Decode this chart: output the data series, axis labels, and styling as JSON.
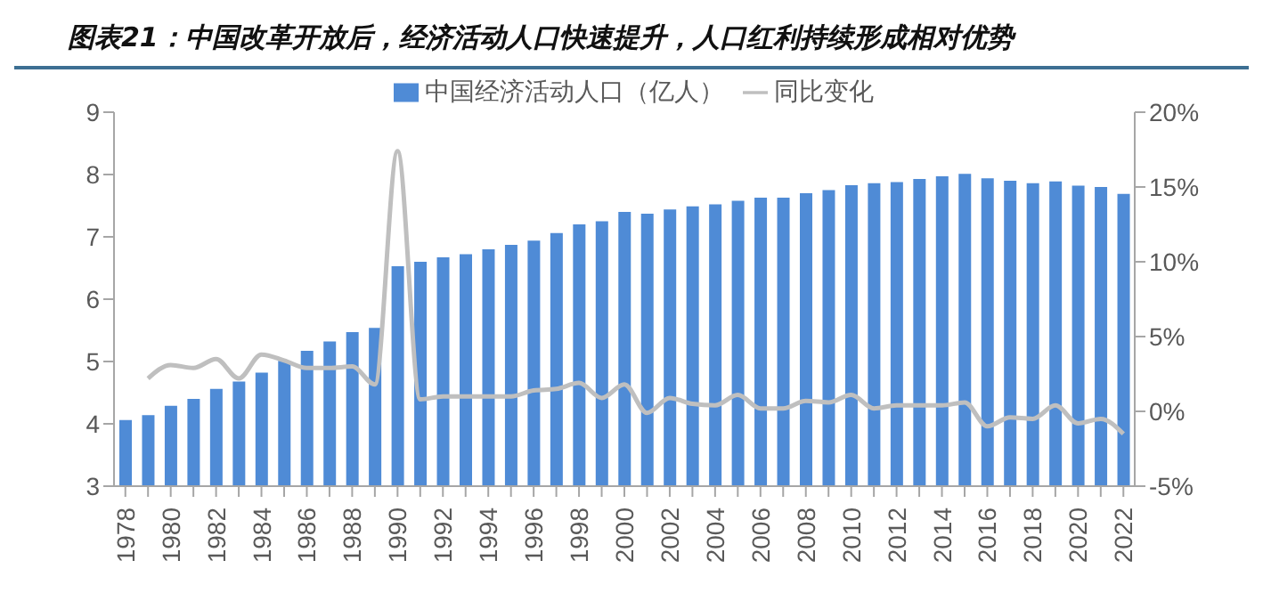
{
  "chart_data": {
    "type": "bar",
    "title": "图表21：中国改革开放后，经济活动人口快速提升，人口红利持续形成相对优势",
    "categories": [
      "1978",
      null,
      "1980",
      null,
      "1982",
      null,
      "1984",
      null,
      "1986",
      null,
      "1988",
      null,
      "1990",
      null,
      "1992",
      null,
      "1994",
      null,
      "1996",
      null,
      "1998",
      null,
      "2000",
      null,
      "2002",
      null,
      "2004",
      null,
      "2006",
      null,
      "2008",
      null,
      "2010",
      null,
      "2012",
      null,
      "2014",
      null,
      "2016",
      null,
      "2018",
      null,
      "2020",
      null,
      "2022"
    ],
    "series": [
      {
        "name": "中国经济活动人口（亿人）",
        "color": "#4f8bd6",
        "values": [
          4.06,
          4.14,
          4.29,
          4.4,
          4.56,
          4.68,
          4.82,
          5.01,
          5.17,
          5.32,
          5.47,
          5.54,
          6.53,
          6.6,
          6.67,
          6.72,
          6.8,
          6.87,
          6.94,
          7.06,
          7.2,
          7.25,
          7.4,
          7.37,
          7.44,
          7.49,
          7.52,
          7.58,
          7.63,
          7.63,
          7.7,
          7.75,
          7.83,
          7.86,
          7.88,
          7.93,
          7.97,
          8.01,
          7.94,
          7.9,
          7.86,
          7.89,
          7.82,
          7.8,
          7.69
        ]
      },
      {
        "name": "同比变化",
        "type": "line",
        "axis": "y2",
        "color": "#bfbfbf",
        "values": [
          null,
          2.2,
          3.1,
          2.9,
          3.5,
          2.2,
          3.8,
          3.4,
          2.9,
          2.9,
          3.0,
          1.8,
          17.4,
          0.8,
          1.0,
          1.0,
          1.0,
          1.0,
          1.4,
          1.5,
          1.9,
          0.9,
          1.8,
          -0.1,
          0.9,
          0.5,
          0.4,
          1.1,
          0.2,
          0.2,
          0.7,
          0.6,
          1.1,
          0.2,
          0.4,
          0.4,
          0.4,
          0.6,
          -1.0,
          -0.4,
          -0.5,
          0.4,
          -0.8,
          -0.5,
          -1.5
        ]
      }
    ],
    "ylim": [
      3,
      9
    ],
    "yticks": [
      3,
      4,
      5,
      6,
      7,
      8,
      9
    ],
    "y2lim": [
      -5,
      20
    ],
    "y2ticks": [
      {
        "value": -5,
        "label": "-5%"
      },
      {
        "value": 0,
        "label": "0%"
      },
      {
        "value": 5,
        "label": "5%"
      },
      {
        "value": 10,
        "label": "10%"
      },
      {
        "value": 15,
        "label": "15%"
      },
      {
        "value": 20,
        "label": "20%"
      }
    ],
    "legend": "top",
    "grid": false,
    "marker": "none",
    "line_style": "solid"
  }
}
